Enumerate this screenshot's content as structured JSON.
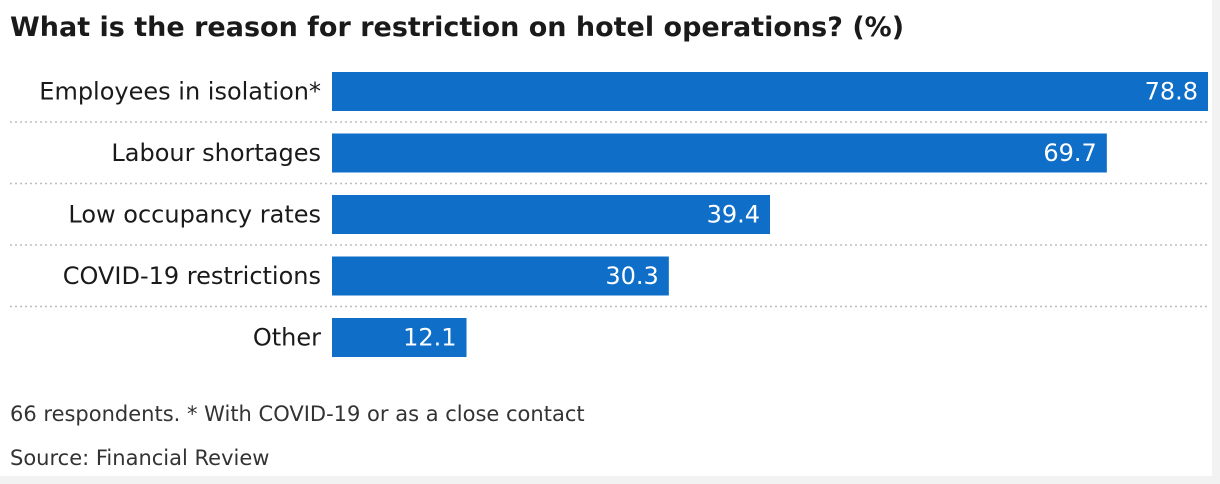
{
  "title": "What is the reason for restriction on hotel operations? (%)",
  "footnote": "66 respondents. * With COVID-19 or as a close contact",
  "source": "Source: Financial Review",
  "colors": {
    "bar": "#0e6ec8",
    "bar_label": "#ffffff",
    "category_label": "#1a1a1a",
    "separator": "#bdbdbd"
  },
  "chart_data": {
    "type": "bar",
    "orientation": "horizontal",
    "categories": [
      "Employees in isolation*",
      "Labour shortages",
      "Low occupancy rates",
      "COVID-19 restrictions",
      "Other"
    ],
    "values": [
      78.8,
      69.7,
      39.4,
      30.3,
      12.1
    ],
    "value_labels": [
      "78.8",
      "69.7",
      "39.4",
      "30.3",
      "12.1"
    ],
    "title": "What is the reason for restriction on hotel operations? (%)",
    "xlabel": "",
    "ylabel": "",
    "xlim": [
      0,
      78.8
    ],
    "grid": false,
    "legend": "none"
  }
}
